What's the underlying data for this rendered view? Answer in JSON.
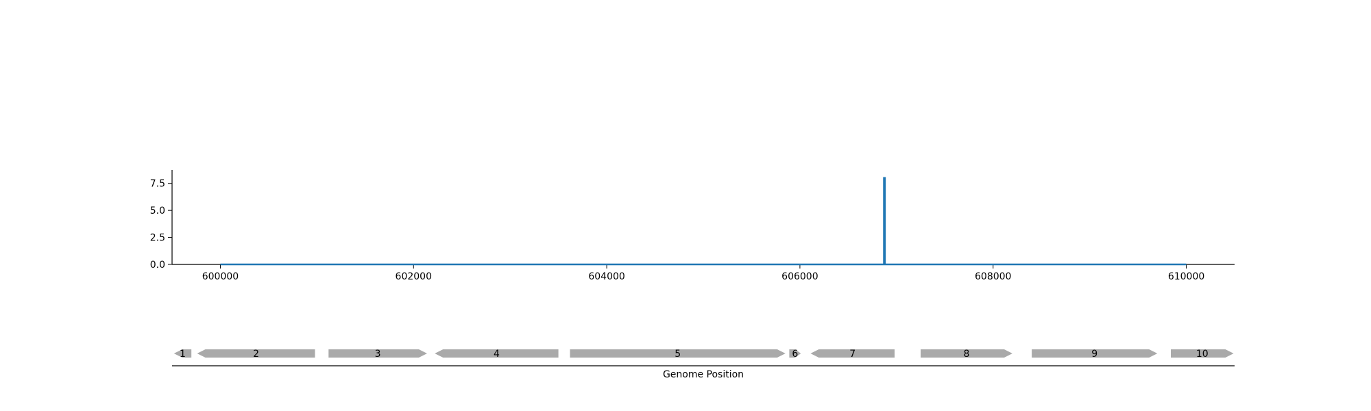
{
  "chart_data": {
    "type": "line",
    "title": "",
    "xlabel": "Genome Position",
    "ylabel": "",
    "xlim": [
      599500,
      610500
    ],
    "ylim": [
      0,
      8.75
    ],
    "x_ticks": [
      600000,
      602000,
      604000,
      606000,
      608000,
      610000
    ],
    "x_tick_labels": [
      "600000",
      "602000",
      "604000",
      "606000",
      "608000",
      "610000"
    ],
    "y_ticks": [
      0,
      2.5,
      5,
      7.5
    ],
    "y_tick_labels": [
      "0.0",
      "2.5",
      "5.0",
      "7.5"
    ],
    "grid": false,
    "legend": "none",
    "series": [
      {
        "color": "#1f77b4",
        "x": [
          600000,
          606870,
          606870,
          606880,
          606880,
          610000
        ],
        "y": [
          0,
          0,
          8,
          8,
          0,
          0
        ]
      }
    ],
    "genes": [
      {
        "label": "1",
        "start": 599520,
        "end": 599700,
        "strand": "-"
      },
      {
        "label": "2",
        "start": 599760,
        "end": 600980,
        "strand": "-"
      },
      {
        "label": "3",
        "start": 601120,
        "end": 602140,
        "strand": "+"
      },
      {
        "label": "4",
        "start": 602220,
        "end": 603500,
        "strand": "-"
      },
      {
        "label": "5",
        "start": 603620,
        "end": 605850,
        "strand": "+"
      },
      {
        "label": "6",
        "start": 605890,
        "end": 606010,
        "strand": "+"
      },
      {
        "label": "7",
        "start": 606110,
        "end": 606980,
        "strand": "-"
      },
      {
        "label": "8",
        "start": 607250,
        "end": 608200,
        "strand": "+"
      },
      {
        "label": "9",
        "start": 608400,
        "end": 609700,
        "strand": "+"
      },
      {
        "label": "10",
        "start": 609840,
        "end": 610490,
        "strand": "+"
      }
    ],
    "gene_color": "#a9a9a9"
  }
}
